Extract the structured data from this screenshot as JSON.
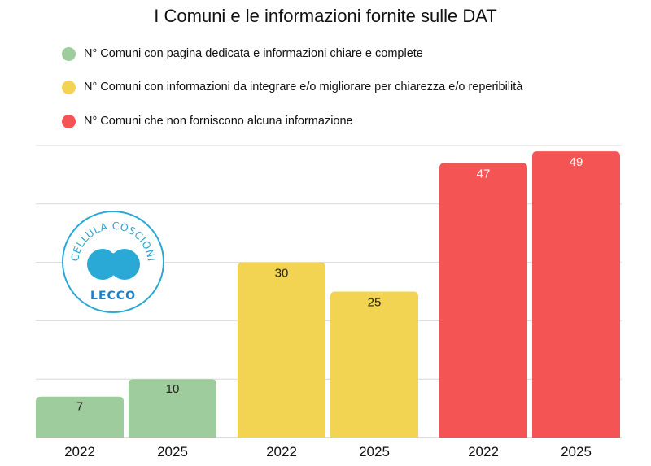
{
  "chart_data": {
    "type": "bar",
    "title": "I Comuni e le informazioni fornite sulle DAT",
    "categories": [
      "2022",
      "2025"
    ],
    "series": [
      {
        "name": "N° Comuni con pagina dedicata e informazioni chiare e complete",
        "color": "#9fcc9c",
        "values": [
          7,
          10
        ]
      },
      {
        "name": "N° Comuni con informazioni da integrare e/o migliorare per chiarezza e/o reperibilità",
        "color": "#f3d452",
        "values": [
          30,
          25
        ]
      },
      {
        "name": "N° Comuni che non forniscono alcuna informazione",
        "color": "#f45454",
        "values": [
          47,
          49
        ]
      }
    ],
    "ylim": [
      0,
      50
    ],
    "gridlines": true,
    "legend": "top-left",
    "xlabel": "",
    "ylabel": ""
  },
  "logo": {
    "text_top": "CELLULA COSCIONI",
    "text_bottom": "LECCO",
    "color": "#2aa9d6"
  }
}
